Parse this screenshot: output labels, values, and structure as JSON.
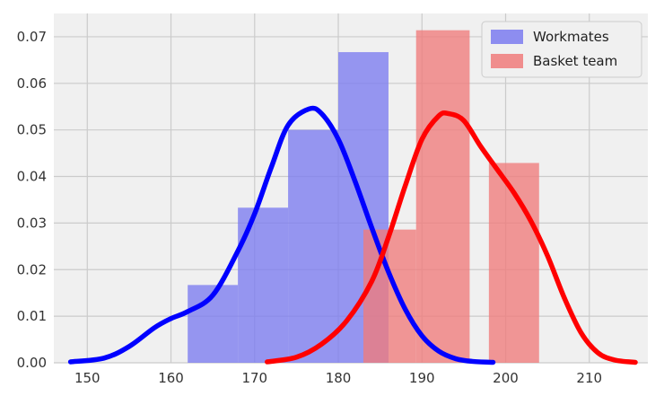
{
  "chart_data": {
    "type": "histogram",
    "title": "",
    "xlabel": "",
    "ylabel": "",
    "xlim": [
      146,
      217
    ],
    "ylim": [
      0,
      0.075
    ],
    "x_ticks": [
      150,
      160,
      170,
      180,
      190,
      200,
      210
    ],
    "y_ticks": [
      0.0,
      0.01,
      0.02,
      0.03,
      0.04,
      0.05,
      0.06,
      0.07
    ],
    "x_tick_labels": [
      "150",
      "160",
      "170",
      "180",
      "190",
      "200",
      "210"
    ],
    "y_tick_labels": [
      "0.00",
      "0.01",
      "0.02",
      "0.03",
      "0.04",
      "0.05",
      "0.06",
      "0.07"
    ],
    "grid": true,
    "legend_position": "top-right",
    "series": [
      {
        "name": "Workmates",
        "hist_color": "#7b7bf0",
        "kde_color": "#0000ff",
        "bins": [
          {
            "x0": 162,
            "x1": 168,
            "density": 0.0167
          },
          {
            "x0": 168,
            "x1": 174,
            "density": 0.0333
          },
          {
            "x0": 174,
            "x1": 180,
            "density": 0.05
          },
          {
            "x0": 180,
            "x1": 186,
            "density": 0.0667
          }
        ],
        "kde": {
          "x": [
            148,
            152,
            155,
            158,
            160,
            162,
            165,
            168,
            170,
            172,
            174,
            176.5,
            178,
            180,
            182,
            184,
            186,
            188,
            190,
            192,
            194,
            196,
            198.5
          ],
          "y": [
            0.0002,
            0.001,
            0.0035,
            0.0075,
            0.0095,
            0.011,
            0.0145,
            0.024,
            0.032,
            0.042,
            0.051,
            0.0545,
            0.0535,
            0.048,
            0.039,
            0.029,
            0.0195,
            0.0115,
            0.0058,
            0.0025,
            0.0009,
            0.0003,
            0.0001
          ]
        }
      },
      {
        "name": "Basket team",
        "hist_color": "#f07b7b",
        "kde_color": "#ff0000",
        "bins": [
          {
            "x0": 183,
            "x1": 189.3,
            "density": 0.0286
          },
          {
            "x0": 189.3,
            "x1": 195.7,
            "density": 0.0714
          },
          {
            "x0": 195.7,
            "x1": 198,
            "density": 0.0
          },
          {
            "x0": 198,
            "x1": 204,
            "density": 0.0429
          }
        ],
        "kde": {
          "x": [
            171.5,
            175,
            178,
            181,
            184,
            186,
            188,
            190,
            192,
            193.2,
            195,
            197,
            199,
            201,
            203,
            205,
            207,
            209,
            211,
            213,
            215.5
          ],
          "y": [
            0.0002,
            0.0012,
            0.004,
            0.009,
            0.0175,
            0.027,
            0.038,
            0.048,
            0.053,
            0.0535,
            0.052,
            0.0465,
            0.0415,
            0.0365,
            0.0305,
            0.023,
            0.014,
            0.0065,
            0.0022,
            0.0006,
            0.0001
          ]
        }
      }
    ]
  }
}
